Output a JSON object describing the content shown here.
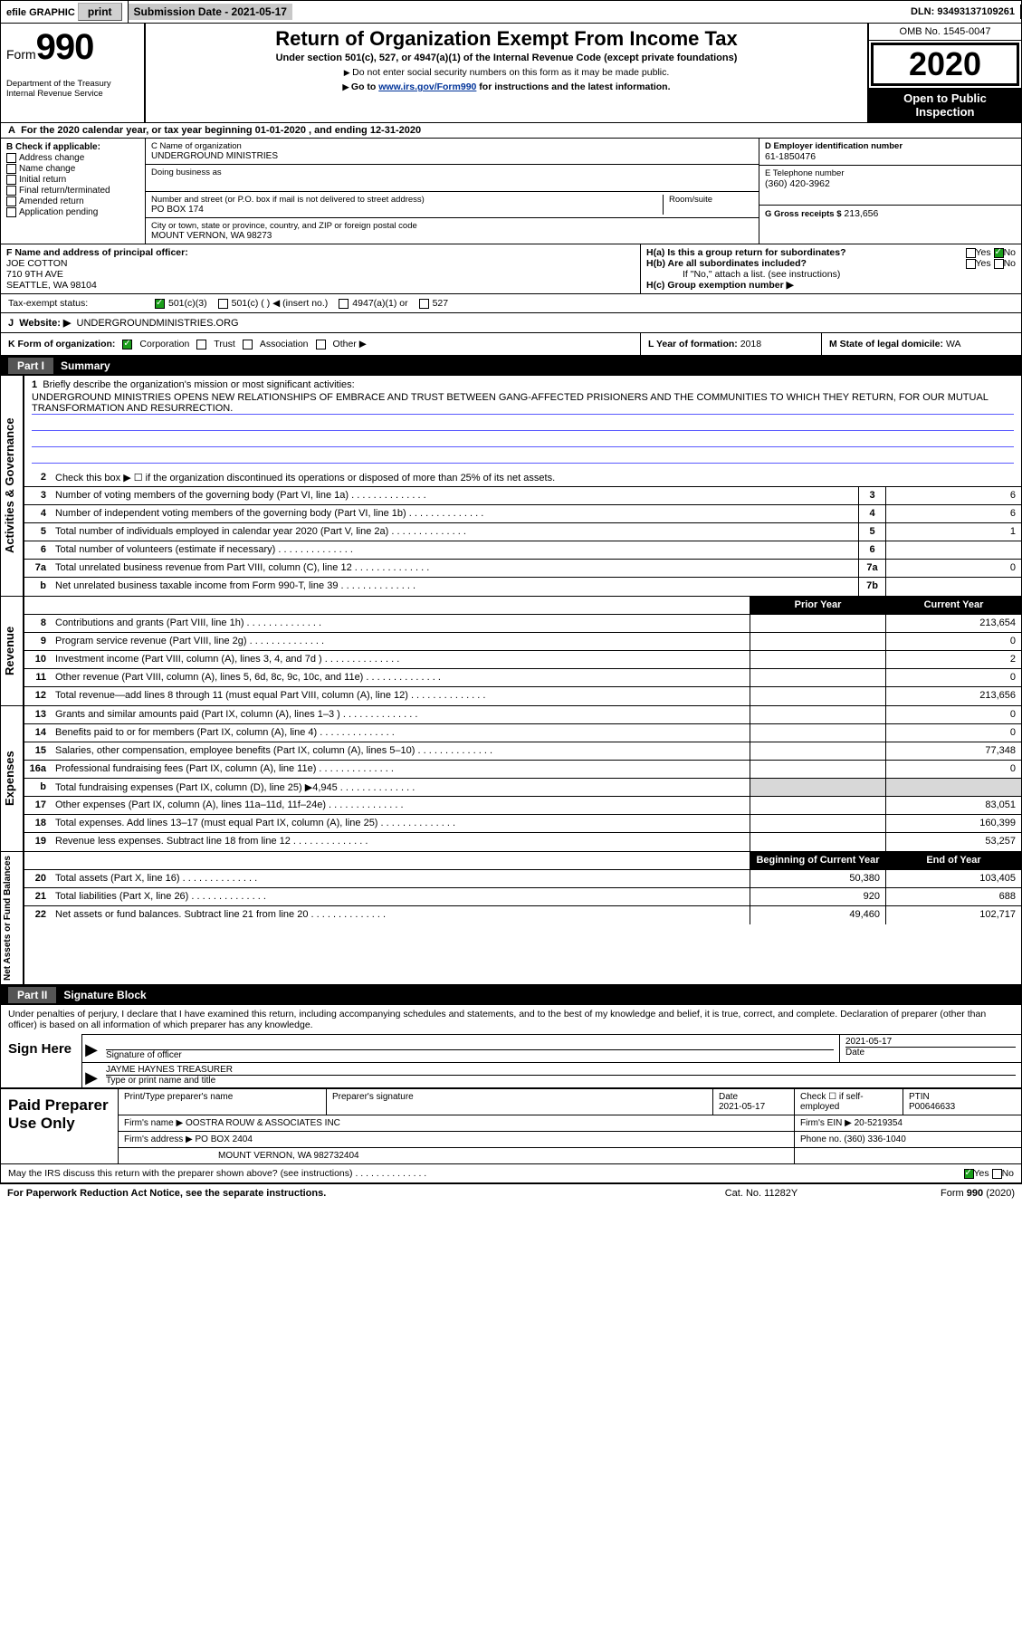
{
  "topbar": {
    "efile": "efile GRAPHIC",
    "print": "print",
    "subdate_lbl": "Submission Date - 2021-05-17",
    "dln": "DLN: 93493137109261"
  },
  "header": {
    "form_word": "Form",
    "form_number": "990",
    "dept": "Department of the Treasury\nInternal Revenue Service",
    "title": "Return of Organization Exempt From Income Tax",
    "subtitle": "Under section 501(c), 527, or 4947(a)(1) of the Internal Revenue Code (except private foundations)",
    "subtitle2": "Do not enter social security numbers on this form as it may be made public.",
    "subtitle3_pre": "Go to ",
    "subtitle3_link": "www.irs.gov/Form990",
    "subtitle3_post": " for instructions and the latest information.",
    "omb": "OMB No. 1545-0047",
    "year": "2020",
    "open_pub": "Open to Public Inspection"
  },
  "rowA": "For the 2020 calendar year, or tax year beginning 01-01-2020     , and ending 12-31-2020",
  "boxB": {
    "label": "Check if applicable:",
    "items": [
      "Address change",
      "Name change",
      "Initial return",
      "Final return/terminated",
      "Amended return",
      "Application pending"
    ]
  },
  "boxC": {
    "name_lbl": "C Name of organization",
    "name": "UNDERGROUND MINISTRIES",
    "dba_lbl": "Doing business as",
    "dba": "",
    "street_lbl": "Number and street (or P.O. box if mail is not delivered to street address)",
    "room_lbl": "Room/suite",
    "street": "PO BOX 174",
    "city_lbl": "City or town, state or province, country, and ZIP or foreign postal code",
    "city": "MOUNT VERNON, WA  98273"
  },
  "boxD": {
    "ein_lbl": "D Employer identification number",
    "ein": "61-1850476",
    "tel_lbl": "E Telephone number",
    "tel": "(360) 420-3962",
    "gross_lbl": "G Gross receipts $",
    "gross": "213,656"
  },
  "boxF": {
    "label": "F  Name and address of principal officer:",
    "name": "JOE COTTON",
    "addr1": "710 9TH AVE",
    "addr2": "SEATTLE, WA  98104"
  },
  "boxH": {
    "ha_lbl": "H(a)  Is this a group return for subordinates?",
    "hb_lbl": "H(b)  Are all subordinates included?",
    "hb_note": "If \"No,\" attach a list. (see instructions)",
    "hc_lbl": "H(c)  Group exemption number ▶"
  },
  "taxexempt": {
    "label": "Tax-exempt status:",
    "c3": "501(c)(3)",
    "c": "501(c) ( ) ◀ (insert no.)",
    "a1": "4947(a)(1) or",
    "527": "527"
  },
  "website": {
    "lbl": "Website: ▶",
    "val": "UNDERGROUNDMINISTRIES.ORG"
  },
  "klm": {
    "k_lbl": "K Form of organization:",
    "k_opts": [
      "Corporation",
      "Trust",
      "Association",
      "Other ▶"
    ],
    "l_lbl": "L Year of formation:",
    "l_val": "2018",
    "m_lbl": "M State of legal domicile:",
    "m_val": "WA"
  },
  "part1": {
    "header_lbl": "Part I",
    "header_txt": "Summary",
    "vtab1": "Activities & Governance",
    "vtab2": "Revenue",
    "vtab3": "Expenses",
    "vtab4": "Net Assets or Fund Balances",
    "l1_lbl": "Briefly describe the organization's mission or most significant activities:",
    "l1_txt": "UNDERGROUND MINISTRIES OPENS NEW RELATIONSHIPS OF EMBRACE AND TRUST BETWEEN GANG-AFFECTED PRISIONERS AND THE COMMUNITIES TO WHICH THEY RETURN, FOR OUR MUTUAL TRANSFORMATION AND RESURRECTION.",
    "l2_txt": "Check this box ▶ ☐  if the organization discontinued its operations or disposed of more than 25% of its net assets.",
    "lines_ag": [
      {
        "n": "3",
        "t": "Number of voting members of the governing body (Part VI, line 1a)",
        "box": "3",
        "v": "6"
      },
      {
        "n": "4",
        "t": "Number of independent voting members of the governing body (Part VI, line 1b)",
        "box": "4",
        "v": "6"
      },
      {
        "n": "5",
        "t": "Total number of individuals employed in calendar year 2020 (Part V, line 2a)",
        "box": "5",
        "v": "1"
      },
      {
        "n": "6",
        "t": "Total number of volunteers (estimate if necessary)",
        "box": "6",
        "v": ""
      },
      {
        "n": "7a",
        "t": "Total unrelated business revenue from Part VIII, column (C), line 12",
        "box": "7a",
        "v": "0"
      },
      {
        "n": "b",
        "t": "Net unrelated business taxable income from Form 990-T, line 39",
        "box": "7b",
        "v": ""
      }
    ],
    "col_prior": "Prior Year",
    "col_current": "Current Year",
    "lines_rev": [
      {
        "n": "8",
        "t": "Contributions and grants (Part VIII, line 1h)",
        "p": "",
        "c": "213,654"
      },
      {
        "n": "9",
        "t": "Program service revenue (Part VIII, line 2g)",
        "p": "",
        "c": "0"
      },
      {
        "n": "10",
        "t": "Investment income (Part VIII, column (A), lines 3, 4, and 7d )",
        "p": "",
        "c": "2"
      },
      {
        "n": "11",
        "t": "Other revenue (Part VIII, column (A), lines 5, 6d, 8c, 9c, 10c, and 11e)",
        "p": "",
        "c": "0"
      },
      {
        "n": "12",
        "t": "Total revenue—add lines 8 through 11 (must equal Part VIII, column (A), line 12)",
        "p": "",
        "c": "213,656"
      }
    ],
    "lines_exp": [
      {
        "n": "13",
        "t": "Grants and similar amounts paid (Part IX, column (A), lines 1–3 )",
        "p": "",
        "c": "0"
      },
      {
        "n": "14",
        "t": "Benefits paid to or for members (Part IX, column (A), line 4)",
        "p": "",
        "c": "0"
      },
      {
        "n": "15",
        "t": "Salaries, other compensation, employee benefits (Part IX, column (A), lines 5–10)",
        "p": "",
        "c": "77,348"
      },
      {
        "n": "16a",
        "t": "Professional fundraising fees (Part IX, column (A), line 11e)",
        "p": "",
        "c": "0"
      },
      {
        "n": "b",
        "t": "Total fundraising expenses (Part IX, column (D), line 25) ▶4,945",
        "p": "shade",
        "c": "shade"
      },
      {
        "n": "17",
        "t": "Other expenses (Part IX, column (A), lines 11a–11d, 11f–24e)",
        "p": "",
        "c": "83,051"
      },
      {
        "n": "18",
        "t": "Total expenses. Add lines 13–17 (must equal Part IX, column (A), line 25)",
        "p": "",
        "c": "160,399"
      },
      {
        "n": "19",
        "t": "Revenue less expenses. Subtract line 18 from line 12",
        "p": "",
        "c": "53,257"
      }
    ],
    "col_begin": "Beginning of Current Year",
    "col_end": "End of Year",
    "lines_net": [
      {
        "n": "20",
        "t": "Total assets (Part X, line 16)",
        "p": "50,380",
        "c": "103,405"
      },
      {
        "n": "21",
        "t": "Total liabilities (Part X, line 26)",
        "p": "920",
        "c": "688"
      },
      {
        "n": "22",
        "t": "Net assets or fund balances. Subtract line 21 from line 20",
        "p": "49,460",
        "c": "102,717"
      }
    ]
  },
  "part2": {
    "header_lbl": "Part II",
    "header_txt": "Signature Block",
    "decl": "Under penalties of perjury, I declare that I have examined this return, including accompanying schedules and statements, and to the best of my knowledge and belief, it is true, correct, and complete. Declaration of preparer (other than officer) is based on all information of which preparer has any knowledge.",
    "sign_here": "Sign Here",
    "sig_officer_lbl": "Signature of officer",
    "sig_date_lbl": "Date",
    "sig_date": "2021-05-17",
    "sig_name": "JAYME HAYNES  TREASURER",
    "sig_name_lbl": "Type or print name and title",
    "paid_lbl": "Paid Preparer Use Only",
    "prep_name_lbl": "Print/Type preparer's name",
    "prep_sig_lbl": "Preparer's signature",
    "prep_date_lbl": "Date",
    "prep_date": "2021-05-17",
    "prep_check_lbl": "Check ☐ if self-employed",
    "ptin_lbl": "PTIN",
    "ptin": "P00646633",
    "firm_name_lbl": "Firm's name    ▶",
    "firm_name": "OOSTRA ROUW & ASSOCIATES INC",
    "firm_ein_lbl": "Firm's EIN ▶",
    "firm_ein": "20-5219354",
    "firm_addr_lbl": "Firm's address ▶",
    "firm_addr1": "PO BOX 2404",
    "firm_addr2": "MOUNT VERNON, WA  982732404",
    "firm_phone_lbl": "Phone no.",
    "firm_phone": "(360) 336-1040",
    "discuss": "May the IRS discuss this return with the preparer shown above? (see instructions)"
  },
  "footer": {
    "left": "For Paperwork Reduction Act Notice, see the separate instructions.",
    "mid": "Cat. No. 11282Y",
    "right": "Form 990 (2020)"
  }
}
